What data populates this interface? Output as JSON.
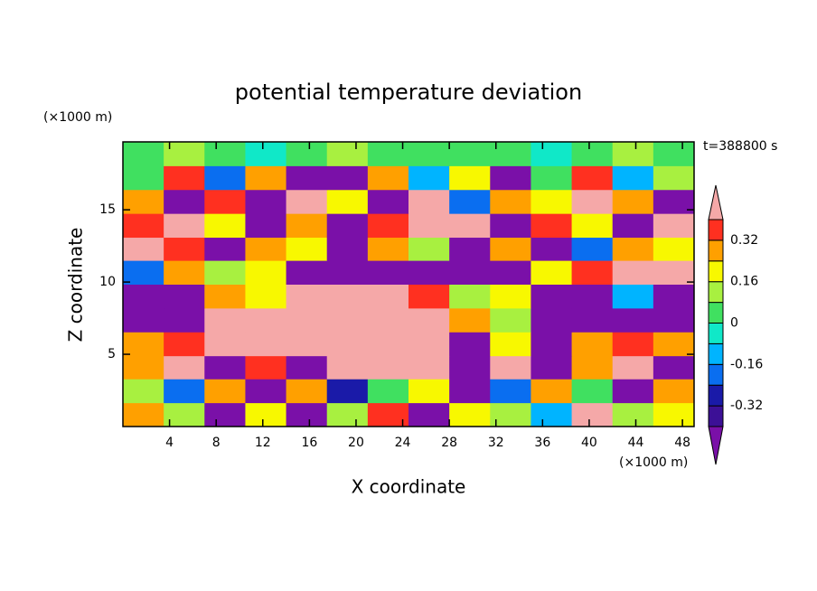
{
  "chart_data": {
    "type": "contour",
    "title": "potential temperature deviation",
    "x_label": "X coordinate",
    "y_label": "Z coordinate",
    "x_unit": "(×1000 m)",
    "y_unit": "(×1000 m)",
    "annotation": "t=388800 s",
    "xlim": [
      0,
      49
    ],
    "ylim": [
      0,
      19.7
    ],
    "xticks": [
      4,
      8,
      12,
      16,
      20,
      24,
      28,
      32,
      36,
      40,
      44,
      48
    ],
    "yticks": [
      5,
      10,
      15
    ],
    "x": [
      1.75,
      5.25,
      8.75,
      12.25,
      15.75,
      19.25,
      22.75,
      26.25,
      29.75,
      33.25,
      36.75,
      40.25,
      43.75,
      47.25
    ],
    "y": [
      0.8,
      2.5,
      4.1,
      5.7,
      7.4,
      9.0,
      10.7,
      12.3,
      13.9,
      15.6,
      17.2,
      18.9
    ],
    "z": [
      [
        0.3,
        0.1,
        -0.45,
        0.2,
        -0.45,
        0.1,
        0.35,
        -0.45,
        0.2,
        0.1,
        -0.1,
        0.45,
        0.1,
        0.2
      ],
      [
        0.15,
        -0.2,
        0.3,
        -0.45,
        0.25,
        -0.3,
        0.05,
        0.2,
        -0.45,
        -0.2,
        0.3,
        0.05,
        -0.45,
        0.3
      ],
      [
        0.3,
        0.45,
        -0.45,
        0.35,
        -0.45,
        0.45,
        0.45,
        0.45,
        -0.45,
        0.45,
        -0.45,
        0.3,
        0.45,
        -0.45
      ],
      [
        0.3,
        0.35,
        0.45,
        0.45,
        0.45,
        0.45,
        0.45,
        0.45,
        -0.45,
        0.2,
        -0.45,
        0.3,
        0.35,
        0.3
      ],
      [
        -0.45,
        -0.45,
        0.45,
        0.45,
        0.45,
        0.45,
        0.45,
        0.45,
        0.3,
        0.1,
        -0.45,
        -0.45,
        -0.45,
        -0.45
      ],
      [
        -0.45,
        -0.45,
        0.25,
        0.2,
        0.45,
        0.45,
        0.45,
        0.35,
        0.1,
        0.2,
        -0.45,
        -0.45,
        -0.1,
        -0.45
      ],
      [
        -0.2,
        0.3,
        0.1,
        0.2,
        -0.45,
        -0.45,
        -0.45,
        -0.45,
        -0.45,
        -0.45,
        0.2,
        0.35,
        0.45,
        0.45
      ],
      [
        0.45,
        0.35,
        -0.45,
        0.3,
        0.2,
        -0.45,
        0.3,
        0.15,
        -0.45,
        0.3,
        -0.45,
        -0.2,
        0.3,
        0.2
      ],
      [
        0.35,
        0.45,
        0.2,
        -0.45,
        0.3,
        -0.45,
        0.35,
        0.45,
        0.45,
        -0.45,
        0.35,
        0.2,
        -0.45,
        0.45
      ],
      [
        0.3,
        -0.45,
        0.35,
        -0.45,
        0.45,
        0.2,
        -0.45,
        0.45,
        -0.2,
        0.3,
        0.2,
        0.45,
        0.3,
        -0.45
      ],
      [
        0.05,
        0.35,
        -0.2,
        0.3,
        -0.45,
        -0.45,
        0.3,
        -0.1,
        0.2,
        -0.45,
        0.05,
        0.35,
        -0.1,
        0.1
      ],
      [
        0.05,
        0.1,
        0.03,
        -0.05,
        0.03,
        0.08,
        0.05,
        0.02,
        0.06,
        0.03,
        -0.05,
        0.05,
        0.1,
        0.04
      ]
    ],
    "levels": [
      -0.4,
      -0.32,
      -0.24,
      -0.16,
      -0.08,
      0,
      0.08,
      0.16,
      0.24,
      0.32,
      0.4
    ],
    "colors": [
      "#7a10a8",
      "#3c1096",
      "#1a1aa8",
      "#0a6ef0",
      "#00b4ff",
      "#10e8c8",
      "#40e060",
      "#a8f040",
      "#f8f800",
      "#ffa000",
      "#ff3020",
      "#f5a8a8"
    ],
    "colorbar_ticks": [
      -0.32,
      -0.16,
      0,
      0.16,
      0.32
    ]
  }
}
